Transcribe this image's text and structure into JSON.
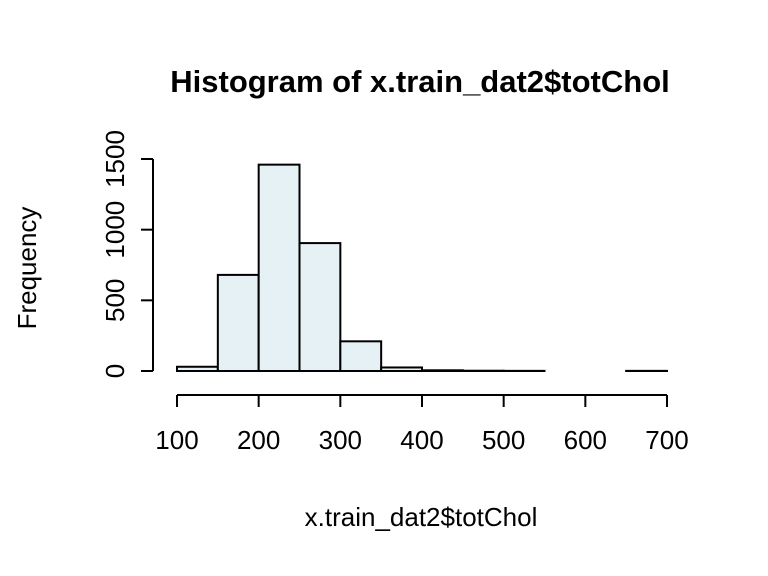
{
  "chart_data": {
    "type": "bar",
    "title": "Histogram of x.train_dat2$totChol",
    "xlabel": "x.train_dat2$totChol",
    "ylabel": "Frequency",
    "bar_color": "#e6f1f5",
    "bins": [
      {
        "start": 100,
        "end": 150,
        "count": 30
      },
      {
        "start": 150,
        "end": 200,
        "count": 680
      },
      {
        "start": 200,
        "end": 250,
        "count": 1460
      },
      {
        "start": 250,
        "end": 300,
        "count": 905
      },
      {
        "start": 300,
        "end": 350,
        "count": 210
      },
      {
        "start": 350,
        "end": 400,
        "count": 25
      },
      {
        "start": 400,
        "end": 450,
        "count": 5
      },
      {
        "start": 450,
        "end": 500,
        "count": 2
      },
      {
        "start": 500,
        "end": 550,
        "count": 1
      },
      {
        "start": 550,
        "end": 600,
        "count": 0
      },
      {
        "start": 600,
        "end": 650,
        "count": 0
      },
      {
        "start": 650,
        "end": 700,
        "count": 1
      }
    ],
    "xlim": [
      100,
      700
    ],
    "ylim": [
      0,
      1500
    ],
    "x_ticks": [
      "100",
      "200",
      "300",
      "400",
      "500",
      "600",
      "700"
    ],
    "y_ticks": [
      "0",
      "500",
      "1000",
      "1500"
    ],
    "grid": false
  }
}
